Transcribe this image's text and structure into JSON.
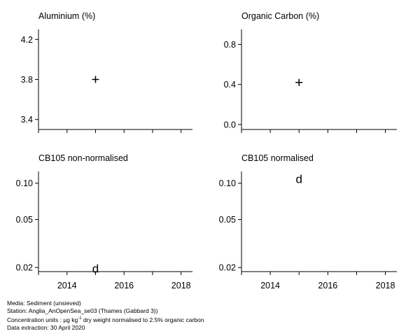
{
  "chart_data": [
    {
      "type": "scatter",
      "title": "Aluminium (%)",
      "ylim": [
        3.3,
        4.3
      ],
      "yticks": [
        3.4,
        3.8,
        4.2
      ],
      "ytick_labels": [
        "3.4",
        "3.8",
        "4.2"
      ],
      "xlim": [
        2013,
        2018.4
      ],
      "xticks": [
        2013,
        2014,
        2015,
        2016,
        2017,
        2018
      ],
      "xtick_labels": [],
      "points": [
        {
          "x": 2015,
          "y": 3.8,
          "marker": "+"
        }
      ]
    },
    {
      "type": "scatter",
      "title": "Organic Carbon (%)",
      "ylim": [
        -0.05,
        0.95
      ],
      "yticks": [
        0.0,
        0.4,
        0.8
      ],
      "ytick_labels": [
        "0.0",
        "0.4",
        "0.8"
      ],
      "xlim": [
        2013,
        2018.4
      ],
      "xticks": [
        2013,
        2014,
        2015,
        2016,
        2017,
        2018
      ],
      "xtick_labels": [],
      "points": [
        {
          "x": 2015,
          "y": 0.42,
          "marker": "+"
        }
      ]
    },
    {
      "type": "scatter",
      "title": "CB105 non-normalised",
      "yscale": "log",
      "ylim": [
        0.0185,
        0.125
      ],
      "yticks": [
        0.02,
        0.05,
        0.1
      ],
      "ytick_labels": [
        "0.02",
        "0.05",
        "0.10"
      ],
      "xlim": [
        2013,
        2018.4
      ],
      "xticks": [
        2013,
        2014,
        2015,
        2016,
        2017,
        2018
      ],
      "xtick_labels": [
        "2014",
        "2016",
        "2018"
      ],
      "xtick_label_values": [
        2014,
        2016,
        2018
      ],
      "points": [
        {
          "x": 2015,
          "y": 0.0197,
          "marker": "d"
        }
      ]
    },
    {
      "type": "scatter",
      "title": "CB105 normalised",
      "yscale": "log",
      "ylim": [
        0.0185,
        0.125
      ],
      "yticks": [
        0.02,
        0.05,
        0.1
      ],
      "ytick_labels": [
        "0.02",
        "0.05",
        "0.10"
      ],
      "xlim": [
        2013,
        2018.4
      ],
      "xticks": [
        2013,
        2014,
        2015,
        2016,
        2017,
        2018
      ],
      "xtick_labels": [
        "2014",
        "2016",
        "2018"
      ],
      "xtick_label_values": [
        2014,
        2016,
        2018
      ],
      "points": [
        {
          "x": 2015,
          "y": 0.109,
          "marker": "d"
        }
      ]
    }
  ],
  "footer": {
    "media": "Media: Sediment (unsieved)",
    "station": "Station: Anglia_AnOpenSea_se03 (Thames (Gabbard 3))",
    "units_prefix": "Concentration units : µg kg",
    "units_sup": "-1",
    "units_suffix": " dry weight normalised to 2.5% organic carbon",
    "extraction": "Data extraction: 30 April 2020"
  }
}
